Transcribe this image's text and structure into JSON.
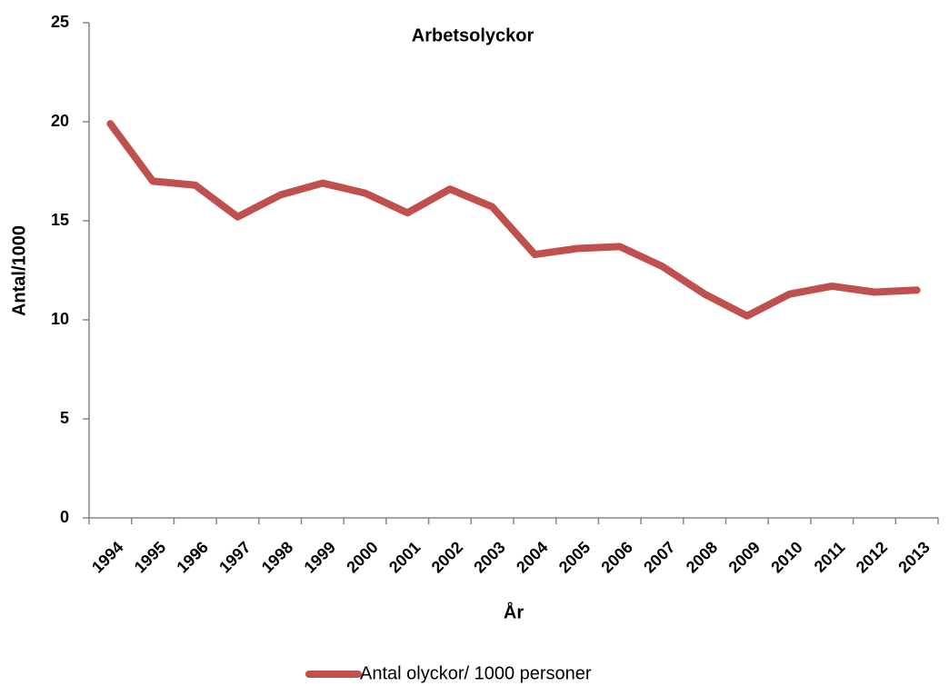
{
  "chart_data": {
    "type": "line",
    "title": "Arbetsolyckor",
    "x_label": "År",
    "y_label": "Antal/1000",
    "categories": [
      "1994",
      "1995",
      "1996",
      "1997",
      "1998",
      "1999",
      "2000",
      "2001",
      "2002",
      "2003",
      "2004",
      "2005",
      "2006",
      "2007",
      "2008",
      "2009",
      "2010",
      "2011",
      "2012",
      "2013"
    ],
    "series": [
      {
        "name": "Antal olyckor/ 1000 personer",
        "color": "#c0504d",
        "values": [
          19.9,
          17.0,
          16.8,
          15.2,
          16.3,
          16.9,
          16.4,
          15.4,
          16.6,
          15.7,
          13.3,
          13.6,
          13.7,
          12.7,
          11.3,
          10.2,
          11.3,
          11.7,
          11.4,
          11.5
        ]
      }
    ],
    "ylim": [
      0,
      25
    ],
    "yticks": [
      0,
      5,
      10,
      15,
      20,
      25
    ],
    "grid": false,
    "legend": "bottom"
  }
}
